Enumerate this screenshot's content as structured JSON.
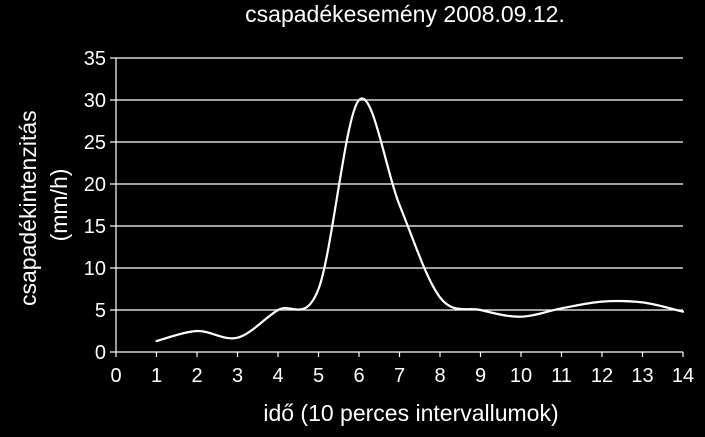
{
  "chart_data": {
    "type": "line",
    "title": "csapadékesemény 2008.09.12.",
    "xlabel": "idő (10 perces intervallumok)",
    "ylabel_lines": [
      "csapadékintenzitás",
      "(mm/h)"
    ],
    "xlim": [
      0,
      14
    ],
    "ylim": [
      0,
      35
    ],
    "x_ticks": [
      0,
      1,
      2,
      3,
      4,
      5,
      6,
      7,
      8,
      9,
      10,
      11,
      12,
      13,
      14
    ],
    "y_ticks": [
      0,
      5,
      10,
      15,
      20,
      25,
      30,
      35
    ],
    "grid": "horizontal",
    "smooth": true,
    "series": [
      {
        "x": [
          1,
          2,
          3,
          4,
          5,
          6,
          7,
          8,
          9,
          10,
          11,
          12,
          13,
          14
        ],
        "y": [
          1.3,
          2.5,
          1.7,
          5.0,
          7.5,
          30.0,
          17.5,
          6.5,
          5.0,
          4.2,
          5.2,
          6.0,
          5.9,
          4.8
        ],
        "color": "#ffffff"
      }
    ]
  }
}
